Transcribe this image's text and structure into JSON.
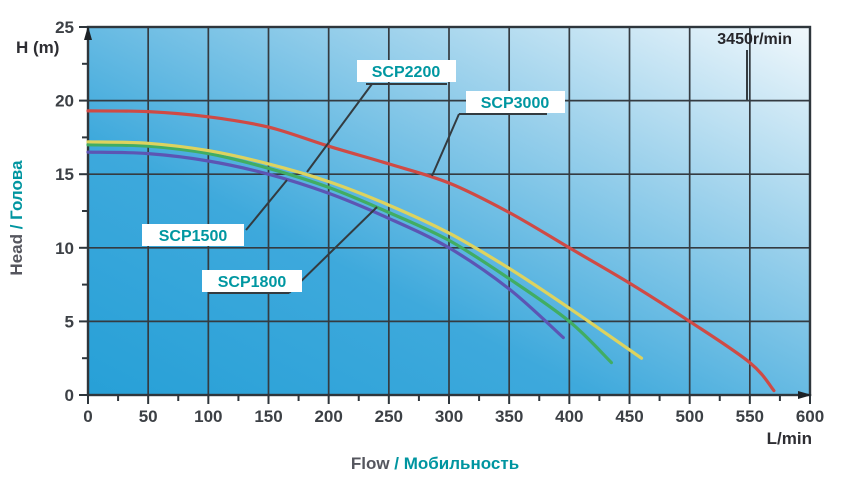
{
  "header": {
    "speed_label": "3450r/min"
  },
  "y_axis": {
    "unit_label": "H (m)",
    "title_en": "Head",
    "title_sep": " / ",
    "title_ru": "Голова"
  },
  "x_axis": {
    "unit_label": "L/min",
    "title_en": "Flow",
    "title_sep": " / ",
    "title_ru": "Мобильность"
  },
  "colors": {
    "grid": "#343b41",
    "border": "#2e363c",
    "tick": "#2e363c",
    "leader": "#333b40",
    "teal_text": "#0097a1",
    "plot_gradient_bottom_left": "#27a0d7",
    "plot_gradient_top_right": "#f1f8fc"
  },
  "chart_data": {
    "type": "line",
    "title": "",
    "xlabel": "Flow / Мобильность",
    "ylabel": "Head / Голова",
    "x_unit": "L/min",
    "y_unit": "H (m)",
    "annotation": "3450r/min",
    "xlim": [
      0,
      600
    ],
    "ylim": [
      0,
      25
    ],
    "x_ticks": [
      0,
      50,
      100,
      150,
      200,
      250,
      300,
      350,
      400,
      450,
      500,
      550,
      600
    ],
    "y_ticks": [
      0,
      5,
      10,
      15,
      20,
      25
    ],
    "x_minor_step": 25,
    "y_minor_step": 2.5,
    "grid": true,
    "legend_position": "inline-callouts",
    "series": [
      {
        "name": "SCP1500",
        "color": "#5c55b4",
        "points": [
          [
            0,
            16.5
          ],
          [
            50,
            16.4
          ],
          [
            100,
            15.9
          ],
          [
            150,
            15.0
          ],
          [
            200,
            13.7
          ],
          [
            250,
            12.0
          ],
          [
            300,
            10.0
          ],
          [
            350,
            7.2
          ],
          [
            395,
            3.9
          ]
        ]
      },
      {
        "name": "SCP1800",
        "color": "#41ad63",
        "points": [
          [
            0,
            17.0
          ],
          [
            50,
            16.9
          ],
          [
            100,
            16.4
          ],
          [
            150,
            15.4
          ],
          [
            200,
            14.1
          ],
          [
            250,
            12.4
          ],
          [
            300,
            10.5
          ],
          [
            350,
            7.9
          ],
          [
            400,
            5.0
          ],
          [
            435,
            2.2
          ]
        ]
      },
      {
        "name": "SCP2200",
        "color": "#ddd35f",
        "points": [
          [
            0,
            17.2
          ],
          [
            50,
            17.1
          ],
          [
            100,
            16.6
          ],
          [
            150,
            15.7
          ],
          [
            200,
            14.5
          ],
          [
            250,
            12.9
          ],
          [
            300,
            11.0
          ],
          [
            350,
            8.6
          ],
          [
            400,
            5.9
          ],
          [
            460,
            2.5
          ]
        ]
      },
      {
        "name": "SCP3000",
        "color": "#cf4a45",
        "points": [
          [
            0,
            19.3
          ],
          [
            50,
            19.25
          ],
          [
            100,
            18.9
          ],
          [
            150,
            18.2
          ],
          [
            200,
            16.9
          ],
          [
            250,
            15.7
          ],
          [
            300,
            14.4
          ],
          [
            350,
            12.4
          ],
          [
            400,
            10.0
          ],
          [
            450,
            7.6
          ],
          [
            500,
            5.0
          ],
          [
            550,
            2.2
          ],
          [
            570,
            0.3
          ]
        ]
      }
    ]
  }
}
